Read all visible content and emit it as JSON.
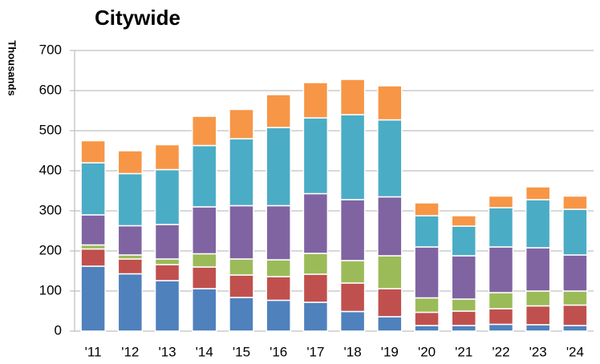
{
  "chart_data": {
    "type": "stacked_bar",
    "title": "Citywide",
    "y_label": "Thousands",
    "categories": [
      "'11",
      "'12",
      "'13",
      "'14",
      "'15",
      "'16",
      "'17",
      "'18",
      "'19",
      "'20",
      "'21",
      "'22",
      "'23",
      "'24"
    ],
    "series": [
      {
        "color": "#4f81bd",
        "values": [
          162,
          143,
          126,
          106,
          84,
          77,
          72,
          49,
          36,
          14,
          14,
          17,
          16,
          14
        ]
      },
      {
        "color": "#c0504d",
        "values": [
          43,
          37,
          40,
          54,
          56,
          59,
          70,
          71,
          70,
          33,
          36,
          39,
          47,
          51
        ]
      },
      {
        "color": "#9bbb59",
        "values": [
          10,
          10,
          14,
          33,
          40,
          42,
          52,
          56,
          82,
          36,
          30,
          40,
          37,
          35
        ]
      },
      {
        "color": "#8064a2",
        "values": [
          75,
          73,
          86,
          117,
          133,
          135,
          149,
          152,
          147,
          127,
          108,
          114,
          108,
          90
        ]
      },
      {
        "color": "#4bacc6",
        "values": [
          130,
          130,
          137,
          153,
          167,
          195,
          189,
          212,
          192,
          78,
          74,
          98,
          120,
          114
        ]
      },
      {
        "color": "#f79646",
        "values": [
          55,
          57,
          62,
          73,
          73,
          82,
          88,
          88,
          85,
          32,
          26,
          29,
          32,
          33
        ]
      }
    ],
    "ylim": [
      0,
      700
    ],
    "yticks": [
      0,
      100,
      200,
      300,
      400,
      500,
      600,
      700
    ],
    "grid": true
  }
}
